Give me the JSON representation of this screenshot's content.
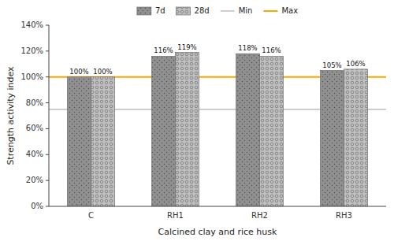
{
  "chart_data": {
    "type": "bar",
    "categories": [
      "C",
      "RH1",
      "RH2",
      "RH3"
    ],
    "series": [
      {
        "name": "7d",
        "color": "#909090",
        "values": [
          1.0,
          1.16,
          1.18,
          1.05
        ],
        "value_labels": [
          "100%",
          "116%",
          "118%",
          "105%"
        ]
      },
      {
        "name": "28d",
        "color": "#c0c0c0",
        "values": [
          1.0,
          1.19,
          1.16,
          1.06
        ],
        "value_labels": [
          "100%",
          "119%",
          "116%",
          "106%"
        ]
      }
    ],
    "reference_lines": [
      {
        "name": "Min",
        "value": 0.75,
        "color": "#b0b0b0"
      },
      {
        "name": "Max",
        "value": 1.0,
        "color": "#FFA500"
      }
    ],
    "x_label": "Calcined clay and rice husk",
    "y_label": "Strength activity index",
    "ylim": [
      0.0,
      1.4
    ],
    "yticks": [
      {
        "value": 0.0,
        "label": "0%"
      },
      {
        "value": 0.2,
        "label": "20%"
      },
      {
        "value": 0.4,
        "label": "40%"
      },
      {
        "value": 0.6,
        "label": "60%"
      },
      {
        "value": 0.8,
        "label": "80%"
      },
      {
        "value": 1.0,
        "label": "100%"
      },
      {
        "value": 1.2,
        "label": "120%"
      },
      {
        "value": 1.4,
        "label": "140%"
      }
    ],
    "data_labels": true,
    "legend": "top",
    "grid": false
  }
}
